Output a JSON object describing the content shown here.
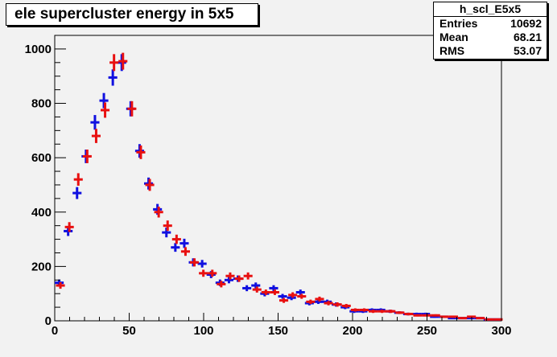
{
  "title": "ele supercluster energy in 5x5",
  "stats": {
    "name": "h_scl_E5x5",
    "rows": [
      {
        "label": "Entries",
        "value": "10692"
      },
      {
        "label": "Mean",
        "value": "68.21"
      },
      {
        "label": "RMS",
        "value": "53.07"
      }
    ]
  },
  "colors": {
    "series_blue": "#1010e0",
    "series_red": "#e81010",
    "frame_bg": "#f2f2f2"
  },
  "chart_data": {
    "type": "scatter",
    "style": "histogram-error-crosses",
    "title": "ele supercluster energy in 5x5",
    "xlabel": "",
    "ylabel": "",
    "xlim": [
      0,
      300
    ],
    "ylim": [
      0,
      1050
    ],
    "bin_width": 6,
    "x_ticks": [
      0,
      50,
      100,
      150,
      200,
      250,
      300
    ],
    "x_tick_labels": [
      "0",
      "50",
      "100",
      "150",
      "200",
      "250",
      "300"
    ],
    "y_ticks": [
      0,
      200,
      400,
      600,
      800,
      1000
    ],
    "y_tick_labels": [
      "0",
      "200",
      "400",
      "600",
      "800",
      "1000"
    ],
    "grid": false,
    "series": [
      {
        "color": "blue",
        "x": [
          3,
          9,
          15,
          21,
          27,
          33,
          39,
          45,
          51,
          57,
          63,
          69,
          75,
          81,
          87,
          93,
          99,
          105,
          111,
          117,
          123,
          129,
          135,
          141,
          147,
          153,
          159,
          165,
          171,
          177,
          183,
          189,
          195,
          201,
          207,
          213,
          219,
          225,
          231,
          237,
          243,
          249,
          255,
          261,
          267,
          273,
          279,
          285,
          291,
          297
        ],
        "y": [
          140,
          330,
          470,
          605,
          730,
          810,
          895,
          950,
          780,
          625,
          505,
          410,
          325,
          270,
          285,
          215,
          210,
          170,
          140,
          150,
          155,
          120,
          130,
          100,
          120,
          90,
          85,
          105,
          65,
          70,
          70,
          60,
          50,
          35,
          35,
          40,
          40,
          35,
          30,
          25,
          25,
          25,
          15,
          15,
          10,
          10,
          10,
          10,
          5,
          5
        ],
        "err": [
          12,
          18,
          22,
          25,
          27,
          28,
          30,
          31,
          28,
          25,
          22,
          20,
          18,
          16,
          17,
          15,
          14,
          13,
          12,
          12,
          12,
          11,
          11,
          10,
          11,
          9,
          9,
          10,
          8,
          8,
          8,
          8,
          7,
          6,
          6,
          6,
          6,
          6,
          5,
          5,
          5,
          5,
          4,
          4,
          3,
          3,
          3,
          3,
          2,
          2
        ]
      },
      {
        "color": "red",
        "x": [
          3,
          9,
          15,
          21,
          27,
          33,
          39,
          45,
          51,
          57,
          63,
          69,
          75,
          81,
          87,
          93,
          99,
          105,
          111,
          117,
          123,
          129,
          135,
          141,
          147,
          153,
          159,
          165,
          171,
          177,
          183,
          189,
          195,
          201,
          207,
          213,
          219,
          225,
          231,
          237,
          243,
          249,
          255,
          261,
          267,
          273,
          279,
          285,
          291,
          297
        ],
        "y": [
          130,
          345,
          520,
          605,
          680,
          775,
          950,
          955,
          780,
          620,
          500,
          400,
          350,
          300,
          255,
          215,
          175,
          175,
          135,
          165,
          155,
          165,
          115,
          105,
          105,
          75,
          95,
          90,
          70,
          80,
          65,
          60,
          55,
          40,
          40,
          35,
          35,
          35,
          30,
          25,
          20,
          20,
          20,
          15,
          15,
          10,
          15,
          10,
          5,
          5
        ],
        "err": [
          12,
          18,
          23,
          25,
          26,
          28,
          31,
          31,
          28,
          25,
          22,
          20,
          19,
          17,
          16,
          15,
          13,
          13,
          12,
          13,
          12,
          13,
          11,
          10,
          10,
          9,
          10,
          9,
          8,
          9,
          8,
          8,
          7,
          6,
          6,
          6,
          6,
          6,
          5,
          5,
          4,
          4,
          4,
          4,
          4,
          3,
          4,
          3,
          2,
          2
        ]
      }
    ]
  }
}
